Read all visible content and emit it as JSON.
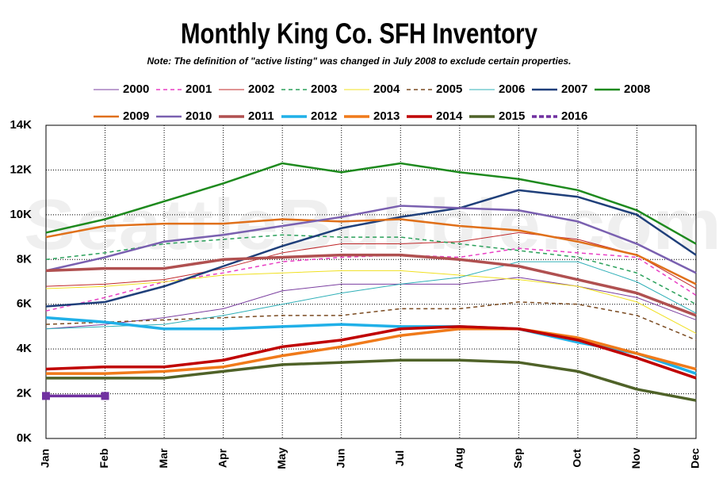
{
  "chart_data": {
    "type": "line",
    "title": "Monthly King Co. SFH Inventory",
    "subtitle": "Note: The definition of \"active listing\" was changed in July 2008 to exclude certain properties.",
    "watermark": "SeattleBubble.com",
    "categories": [
      "Jan",
      "Feb",
      "Mar",
      "Apr",
      "May",
      "Jun",
      "Jul",
      "Aug",
      "Sep",
      "Oct",
      "Nov",
      "Dec"
    ],
    "ylim": [
      0,
      14000
    ],
    "yticks": [
      {
        "value": 0,
        "label": "0K"
      },
      {
        "value": 2000,
        "label": "2K"
      },
      {
        "value": 4000,
        "label": "4K"
      },
      {
        "value": 6000,
        "label": "6K"
      },
      {
        "value": 8000,
        "label": "8K"
      },
      {
        "value": 10000,
        "label": "10K"
      },
      {
        "value": 12000,
        "label": "12K"
      },
      {
        "value": 14000,
        "label": "14K"
      }
    ],
    "grid": true,
    "legend": "top",
    "series": [
      {
        "name": "2000",
        "color": "#7b3fa0",
        "width": 1,
        "dash": false,
        "values": [
          4900,
          5100,
          5400,
          5800,
          6600,
          6900,
          6900,
          6900,
          7200,
          6800,
          6300,
          5300
        ]
      },
      {
        "name": "2001",
        "color": "#e83fc4",
        "width": 1.5,
        "dash": true,
        "values": [
          5700,
          6300,
          7000,
          7400,
          7900,
          8100,
          8200,
          8100,
          8500,
          8300,
          8100,
          6400
        ]
      },
      {
        "name": "2002",
        "color": "#c0282a",
        "width": 1,
        "dash": false,
        "values": [
          6800,
          6900,
          7100,
          7600,
          8300,
          8700,
          8700,
          8800,
          9200,
          8900,
          8200,
          6700
        ]
      },
      {
        "name": "2003",
        "color": "#2aa05a",
        "width": 1.5,
        "dash": true,
        "values": [
          8000,
          8300,
          8700,
          8900,
          9100,
          9000,
          9000,
          8700,
          8400,
          8100,
          7400,
          6000
        ]
      },
      {
        "name": "2004",
        "color": "#f0e020",
        "width": 1,
        "dash": false,
        "values": [
          6700,
          6800,
          7000,
          7300,
          7400,
          7500,
          7500,
          7300,
          7100,
          6800,
          6100,
          4700
        ]
      },
      {
        "name": "2005",
        "color": "#7a4a20",
        "width": 1.5,
        "dash": true,
        "values": [
          5100,
          5200,
          5300,
          5400,
          5500,
          5500,
          5800,
          5800,
          6100,
          6000,
          5500,
          4400
        ]
      },
      {
        "name": "2006",
        "color": "#30b0b8",
        "width": 1,
        "dash": false,
        "values": [
          4900,
          5000,
          5100,
          5500,
          6000,
          6500,
          6900,
          7200,
          7900,
          7900,
          7000,
          5600
        ]
      },
      {
        "name": "2007",
        "color": "#1f3f7a",
        "width": 2.5,
        "dash": false,
        "values": [
          5900,
          6100,
          6800,
          7700,
          8600,
          9400,
          9900,
          10300,
          11100,
          10800,
          10000,
          8200
        ]
      },
      {
        "name": "2008",
        "color": "#1e8a1e",
        "width": 2.5,
        "dash": false,
        "values": [
          9200,
          9800,
          10600,
          11400,
          12300,
          11900,
          12300,
          11900,
          11600,
          11100,
          10200,
          8700
        ]
      },
      {
        "name": "2009",
        "color": "#e0701a",
        "width": 2.5,
        "dash": false,
        "values": [
          9000,
          9500,
          9600,
          9600,
          9800,
          9700,
          9800,
          9500,
          9300,
          8800,
          8200,
          6900
        ]
      },
      {
        "name": "2010",
        "color": "#7a60b0",
        "width": 2.5,
        "dash": false,
        "values": [
          7500,
          8100,
          8800,
          9100,
          9500,
          9900,
          10400,
          10300,
          10200,
          9700,
          8700,
          7400
        ]
      },
      {
        "name": "2011",
        "color": "#b05050",
        "width": 3.5,
        "dash": false,
        "values": [
          7500,
          7600,
          7600,
          8000,
          8100,
          8200,
          8200,
          8000,
          7700,
          7100,
          6500,
          5500
        ]
      },
      {
        "name": "2012",
        "color": "#20b0e8",
        "width": 3.5,
        "dash": false,
        "values": [
          5400,
          5200,
          4900,
          4900,
          5000,
          5100,
          5000,
          5000,
          4900,
          4300,
          3800,
          2900
        ]
      },
      {
        "name": "2013",
        "color": "#f07a1a",
        "width": 3.5,
        "dash": false,
        "values": [
          2900,
          2900,
          3000,
          3200,
          3700,
          4100,
          4600,
          4900,
          4900,
          4500,
          3800,
          3100
        ]
      },
      {
        "name": "2014",
        "color": "#c00000",
        "width": 3.5,
        "dash": false,
        "values": [
          3100,
          3200,
          3200,
          3500,
          4100,
          4400,
          4900,
          5000,
          4900,
          4400,
          3600,
          2700
        ]
      },
      {
        "name": "2015",
        "color": "#4f6228",
        "width": 3.5,
        "dash": false,
        "values": [
          2700,
          2700,
          2700,
          3000,
          3300,
          3400,
          3500,
          3500,
          3400,
          3000,
          2200,
          1700
        ]
      },
      {
        "name": "2016",
        "color": "#7030a0",
        "width": 3.5,
        "dash": false,
        "marker": "square",
        "values": [
          1900,
          1900,
          null,
          null,
          null,
          null,
          null,
          null,
          null,
          null,
          null,
          null
        ]
      }
    ]
  }
}
